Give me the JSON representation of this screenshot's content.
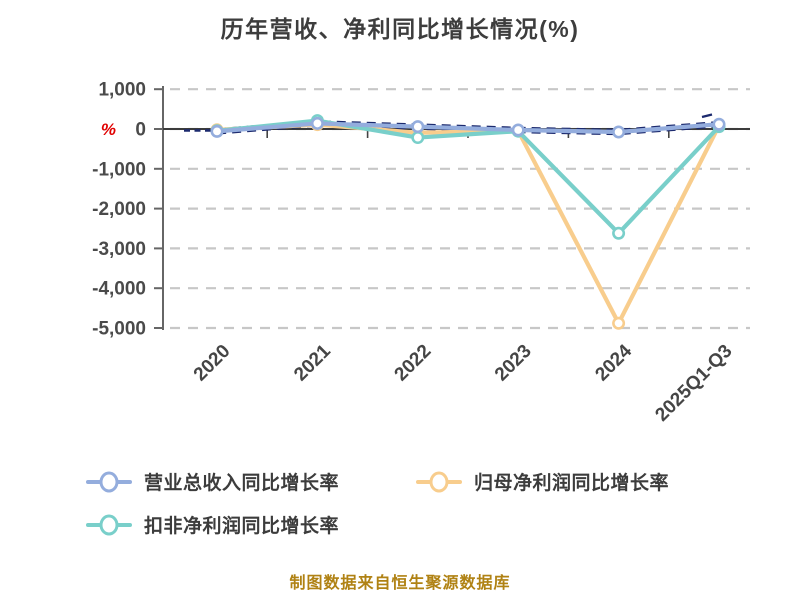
{
  "title": "历年营收、净利同比增长情况(%)",
  "caption": "制图数据来自恒生聚源数据库",
  "y_axis_unit": "%",
  "colors": {
    "revenue_line": "#94addd",
    "net_profit_line": "#f8cd8d",
    "non_recurring_line": "#79cfca",
    "hidden_label_navy": "#1c2a6e",
    "gridline": "#c7c7c7",
    "axis": "#666666",
    "zero_axis": "#3c3c3c",
    "title_text": "#3d3d3d",
    "tick_text": "#4a4a4a",
    "unit_text": "#e00000",
    "legend_text": "#3c3c3c",
    "caption_text": "#b08214",
    "marker_fill": "#ffffff"
  },
  "legend": [
    {
      "id": "revenue",
      "label": "营业总收入同比增长率",
      "color": "#94addd"
    },
    {
      "id": "net_profit",
      "label": "归母净利润同比增长率",
      "color": "#f8cd8d"
    },
    {
      "id": "non_recurring",
      "label": "扣非净利润同比增长率",
      "color": "#79cfca"
    }
  ],
  "chart_data": {
    "type": "line",
    "title": "历年营收、净利同比增长情况(%)",
    "ylabel": "%",
    "categories": [
      "2020",
      "2021",
      "2022",
      "2023",
      "2024",
      "2025Q1-Q3"
    ],
    "series": [
      {
        "name": "营业总收入同比增长率",
        "color": "#94addd",
        "values": [
          -60,
          140,
          60,
          -25,
          -75,
          120
        ]
      },
      {
        "name": "归母净利润同比增长率",
        "color": "#f8cd8d",
        "values": [
          -20,
          110,
          -95,
          -45,
          -4880,
          85
        ]
      },
      {
        "name": "扣非净利润同比增长率",
        "color": "#79cfca",
        "values": [
          -45,
          210,
          -215,
          -55,
          -2620,
          60
        ]
      }
    ],
    "ylim": [
      -5000,
      1000
    ],
    "ytick_step": 1000,
    "ytick_labels": [
      "1,000",
      "0",
      "-1,000",
      "-2,000",
      "-3,000",
      "-4,000",
      "-5,000"
    ],
    "grid": "dashed horizontal",
    "legend_position": "bottom",
    "marker": "circle-white-fill"
  }
}
